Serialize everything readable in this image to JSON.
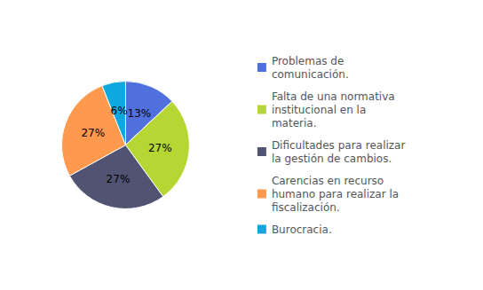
{
  "chart_data": {
    "type": "pie",
    "categories": [
      "Problemas de\ncomunicación.",
      "Falta de una normativa\ninstitucional en la\nmateria.",
      "Dificultades para realizar\nla gestión de cambios.",
      "Carencias en recurso\nhumano para realizar la\nfiscalización.",
      "Burocracia."
    ],
    "values": [
      13,
      27,
      27,
      27,
      6
    ],
    "value_labels": [
      "13%",
      "27%",
      "27%",
      "27%",
      "6%"
    ],
    "data_labels": true,
    "legend": "right"
  }
}
